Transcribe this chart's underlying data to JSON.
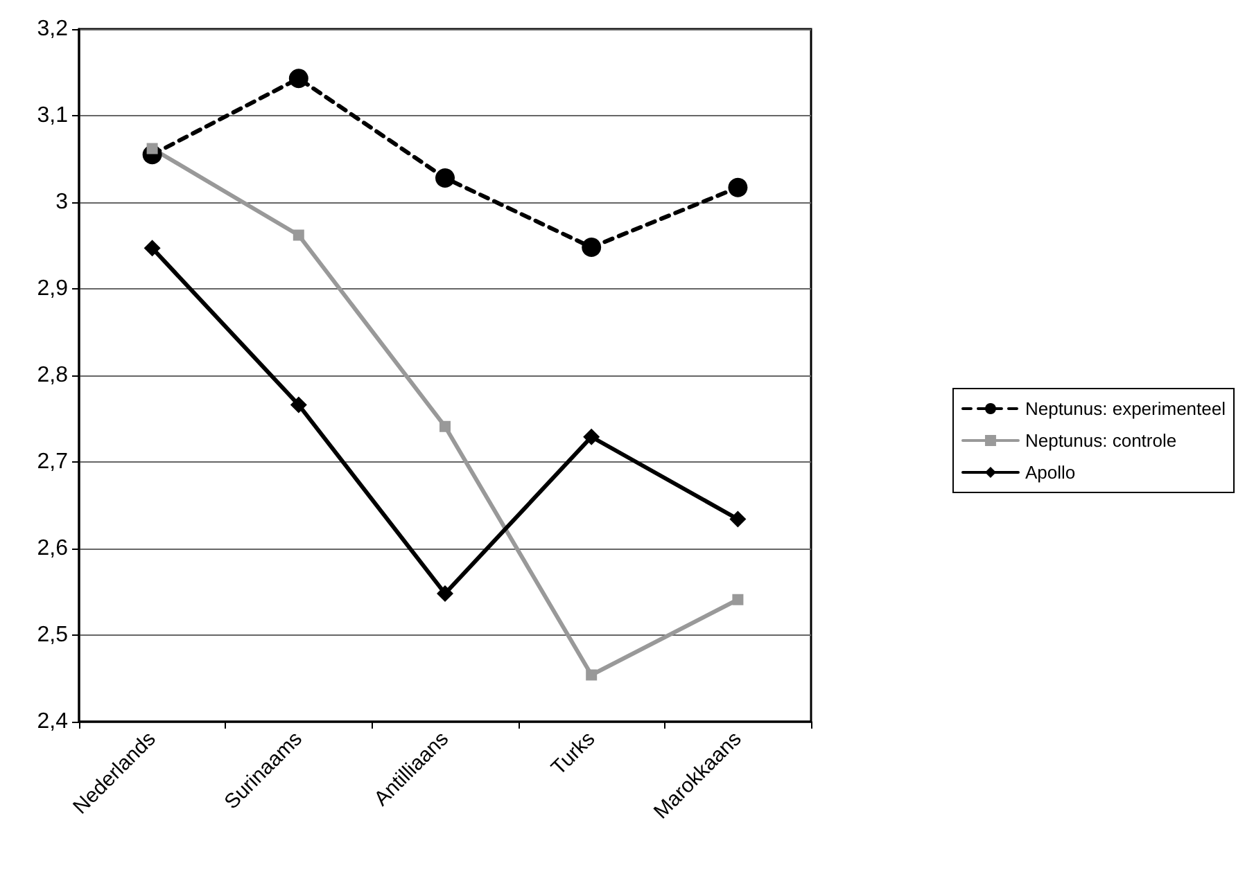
{
  "chart_data": {
    "type": "line",
    "categories": [
      "Nederlands",
      "Surinaams",
      "Antilliaans",
      "Turks",
      "Marokkaans"
    ],
    "series": [
      {
        "name": "Neptunus: experimenteel",
        "color": "#000000",
        "marker": "circle",
        "line_style": "dashed",
        "values": [
          3.055,
          3.143,
          3.028,
          2.948,
          3.017
        ]
      },
      {
        "name": "Neptunus: controle",
        "color": "#999999",
        "marker": "square",
        "line_style": "solid",
        "values": [
          3.062,
          2.962,
          2.741,
          2.454,
          2.541
        ]
      },
      {
        "name": "Apollo",
        "color": "#000000",
        "marker": "diamond",
        "line_style": "solid",
        "values": [
          2.947,
          2.766,
          2.548,
          2.729,
          2.634
        ]
      }
    ],
    "ylim": [
      2.4,
      3.2
    ],
    "yticks": [
      {
        "value": 2.4,
        "label": "2,4"
      },
      {
        "value": 2.5,
        "label": "2,5"
      },
      {
        "value": 2.6,
        "label": "2,6"
      },
      {
        "value": 2.7,
        "label": "2,7"
      },
      {
        "value": 2.8,
        "label": "2,8"
      },
      {
        "value": 2.9,
        "label": "2,9"
      },
      {
        "value": 3,
        "label": "3"
      },
      {
        "value": 3.1,
        "label": "3,1"
      },
      {
        "value": 3.2,
        "label": "3,2"
      }
    ],
    "grid": "y",
    "legend": "right"
  }
}
